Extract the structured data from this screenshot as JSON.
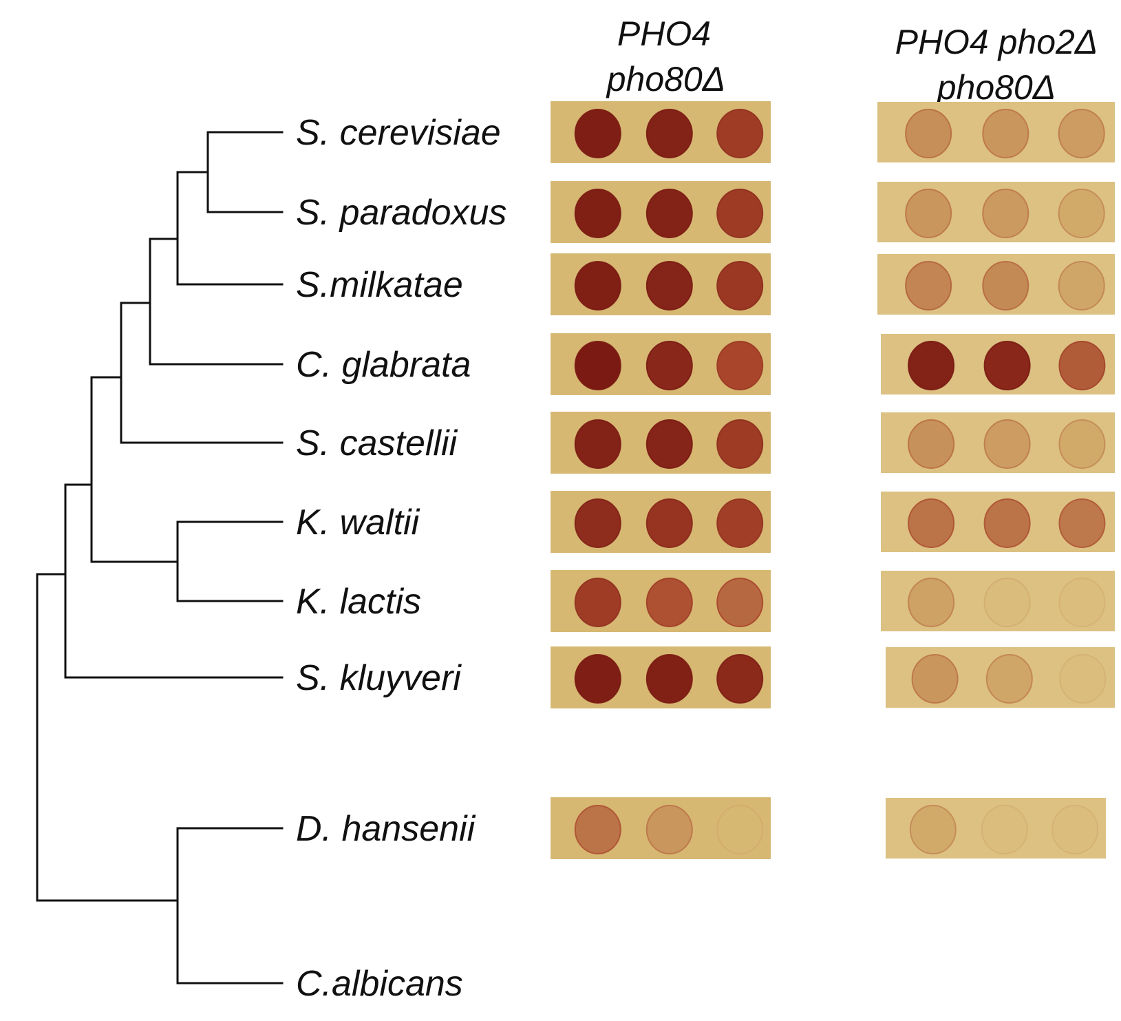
{
  "columns": [
    {
      "line1": "PHO4",
      "line2": "pho80Δ"
    },
    {
      "line1": "PHO4 pho2Δ",
      "line2": "pho80Δ"
    }
  ],
  "colors": {
    "plate": "#d7b873",
    "plate_light": "#dcc182",
    "spot_strong": "#7a1a12",
    "spot_mid": "#a8452b",
    "spot_light": "#c98a55",
    "spot_faint": "#d2ab72"
  },
  "species": [
    {
      "name": "S. cerevisiae",
      "col1": [
        0.95,
        0.9,
        0.6
      ],
      "col2": [
        0.18,
        0.15,
        0.12
      ]
    },
    {
      "name": "S. paradoxus",
      "col1": [
        0.93,
        0.9,
        0.62
      ],
      "col2": [
        0.15,
        0.13,
        0.06
      ]
    },
    {
      "name": "S.milkatae",
      "col1": [
        0.93,
        0.88,
        0.65
      ],
      "col2": [
        0.22,
        0.2,
        0.08
      ]
    },
    {
      "name": "C. glabrata",
      "col1": [
        1.0,
        0.85,
        0.5
      ],
      "col2": [
        0.9,
        0.85,
        0.4
      ]
    },
    {
      "name": "S. castellii",
      "col1": [
        0.9,
        0.88,
        0.62
      ],
      "col2": [
        0.17,
        0.12,
        0.06
      ]
    },
    {
      "name": "K. waltii",
      "col1": [
        0.78,
        0.7,
        0.58
      ],
      "col2": [
        0.3,
        0.3,
        0.28
      ]
    },
    {
      "name": "K. lactis",
      "col1": [
        0.6,
        0.45,
        0.35
      ],
      "col2": [
        0.1,
        0.04,
        0.0
      ]
    },
    {
      "name": "S. kluyveri",
      "col1": [
        0.95,
        0.92,
        0.82
      ],
      "col2": [
        0.15,
        0.08,
        0.0
      ]
    },
    {
      "name": "D. hansenii",
      "col1": [
        0.3,
        0.15,
        0.0
      ],
      "col2": [
        0.06,
        0.0,
        0.0
      ]
    },
    {
      "name": "C.albicans",
      "col1": null,
      "col2": null
    }
  ]
}
